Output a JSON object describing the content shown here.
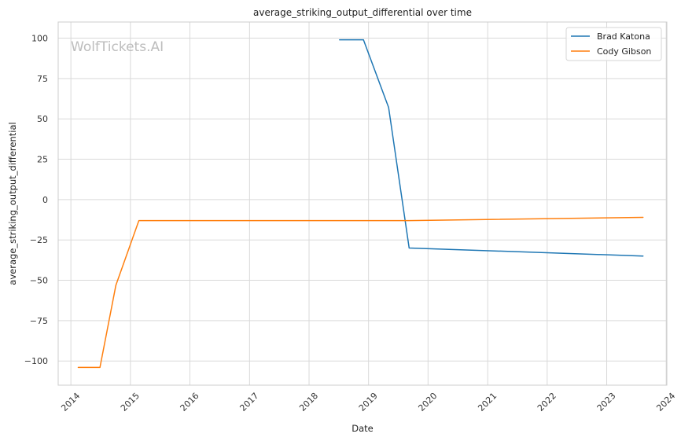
{
  "chart_data": {
    "type": "line",
    "title": "average_striking_output_differential over time",
    "xlabel": "Date",
    "ylabel": "average_striking_output_differential",
    "watermark": "WolfTickets.AI",
    "xlim": [
      "2013-10-15",
      "2024-01-05"
    ],
    "ylim": [
      -115,
      110
    ],
    "xticks": [
      {
        "date": "2014-01-01",
        "label": "2014"
      },
      {
        "date": "2015-01-01",
        "label": "2015"
      },
      {
        "date": "2016-01-01",
        "label": "2016"
      },
      {
        "date": "2017-01-01",
        "label": "2017"
      },
      {
        "date": "2018-01-01",
        "label": "2018"
      },
      {
        "date": "2019-01-01",
        "label": "2019"
      },
      {
        "date": "2020-01-01",
        "label": "2020"
      },
      {
        "date": "2021-01-01",
        "label": "2021"
      },
      {
        "date": "2022-01-01",
        "label": "2022"
      },
      {
        "date": "2023-01-01",
        "label": "2023"
      },
      {
        "date": "2024-01-01",
        "label": "2024"
      }
    ],
    "yticks": [
      {
        "value": 100,
        "label": "100"
      },
      {
        "value": 75,
        "label": "75"
      },
      {
        "value": 50,
        "label": "50"
      },
      {
        "value": 25,
        "label": "25"
      },
      {
        "value": 0,
        "label": "0"
      },
      {
        "value": -25,
        "label": "−25"
      },
      {
        "value": -50,
        "label": "−50"
      },
      {
        "value": -75,
        "label": "−75"
      },
      {
        "value": -100,
        "label": "−100"
      }
    ],
    "grid": true,
    "legend_position": "top-right",
    "series": [
      {
        "name": "Brad Katona",
        "color": "#1f77b4",
        "points": [
          {
            "x": "2018-07-07",
            "y": 99
          },
          {
            "x": "2018-12-01",
            "y": 99
          },
          {
            "x": "2019-05-04",
            "y": 57
          },
          {
            "x": "2019-09-07",
            "y": -30
          },
          {
            "x": "2023-08-12",
            "y": -35
          }
        ]
      },
      {
        "name": "Cody Gibson",
        "color": "#ff7f0e",
        "points": [
          {
            "x": "2014-02-15",
            "y": -104
          },
          {
            "x": "2014-06-28",
            "y": -104
          },
          {
            "x": "2014-10-04",
            "y": -53
          },
          {
            "x": "2015-02-22",
            "y": -13
          },
          {
            "x": "2019-09-07",
            "y": -13
          },
          {
            "x": "2023-08-12",
            "y": -11
          }
        ]
      }
    ]
  }
}
